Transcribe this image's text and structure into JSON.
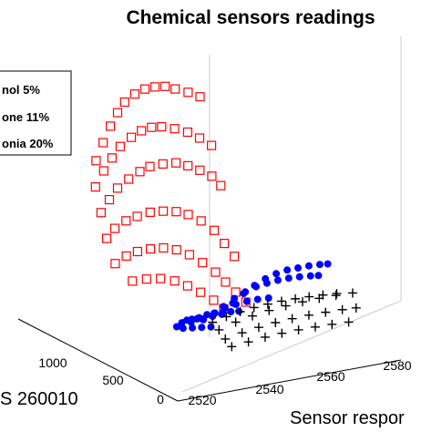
{
  "chart_data": {
    "type": "scatter",
    "title": "Chemical sensors readings",
    "xlabel": "Sensor respor",
    "ylabel": "S 260010",
    "x_ticks": [
      "2520",
      "2540",
      "2560",
      "2580"
    ],
    "y_ticks": [
      "0",
      "500",
      "1000"
    ],
    "xlim": [
      2515,
      2590
    ],
    "ylim": [
      0,
      1500
    ],
    "zlim": [
      0,
      2000
    ],
    "legend_position": "top-left",
    "legend": [
      "nol 5%",
      "one 11%",
      "onia 20%"
    ],
    "series": [
      {
        "name": "nol 5%",
        "marker": "square",
        "color": "#ff0000",
        "points": [
          [
            2531,
            1250,
            1050
          ],
          [
            2532,
            1210,
            1180
          ],
          [
            2533,
            1170,
            1300
          ],
          [
            2534,
            1130,
            1400
          ],
          [
            2535,
            1090,
            1480
          ],
          [
            2537,
            1050,
            1540
          ],
          [
            2539,
            1010,
            1580
          ],
          [
            2541,
            970,
            1600
          ],
          [
            2543,
            930,
            1610
          ],
          [
            2545,
            890,
            1600
          ],
          [
            2548,
            850,
            1580
          ],
          [
            2551,
            820,
            1550
          ],
          [
            2529,
            1200,
            900
          ],
          [
            2530,
            1150,
            1020
          ],
          [
            2531,
            1100,
            1120
          ],
          [
            2532,
            1050,
            1210
          ],
          [
            2534,
            1000,
            1280
          ],
          [
            2536,
            960,
            1330
          ],
          [
            2538,
            920,
            1360
          ],
          [
            2540,
            880,
            1370
          ],
          [
            2543,
            840,
            1360
          ],
          [
            2546,
            800,
            1340
          ],
          [
            2549,
            770,
            1300
          ],
          [
            2552,
            740,
            1250
          ],
          [
            2528,
            1120,
            760
          ],
          [
            2529,
            1070,
            860
          ],
          [
            2530,
            1020,
            950
          ],
          [
            2532,
            970,
            1020
          ],
          [
            2534,
            920,
            1080
          ],
          [
            2536,
            880,
            1120
          ],
          [
            2539,
            840,
            1140
          ],
          [
            2542,
            800,
            1150
          ],
          [
            2545,
            770,
            1130
          ],
          [
            2548,
            740,
            1100
          ],
          [
            2551,
            710,
            1060
          ],
          [
            2553,
            680,
            1000
          ],
          [
            2527,
            1040,
            620
          ],
          [
            2528,
            990,
            700
          ],
          [
            2530,
            940,
            760
          ],
          [
            2532,
            890,
            800
          ],
          [
            2535,
            850,
            830
          ],
          [
            2538,
            810,
            840
          ],
          [
            2541,
            770,
            840
          ],
          [
            2544,
            740,
            820
          ],
          [
            2547,
            700,
            780
          ],
          [
            2550,
            660,
            720
          ],
          [
            2552,
            620,
            640
          ],
          [
            2554,
            580,
            560
          ],
          [
            2527,
            960,
            480
          ],
          [
            2529,
            910,
            540
          ],
          [
            2531,
            860,
            580
          ],
          [
            2534,
            820,
            600
          ],
          [
            2537,
            780,
            610
          ],
          [
            2540,
            740,
            600
          ],
          [
            2543,
            700,
            570
          ],
          [
            2546,
            660,
            520
          ],
          [
            2549,
            620,
            460
          ],
          [
            2551,
            580,
            400
          ],
          [
            2553,
            540,
            340
          ],
          [
            2555,
            500,
            280
          ],
          [
            2530,
            880,
            380
          ],
          [
            2533,
            830,
            400
          ],
          [
            2536,
            780,
            410
          ],
          [
            2539,
            730,
            400
          ],
          [
            2542,
            690,
            370
          ],
          [
            2545,
            650,
            330
          ],
          [
            2548,
            610,
            280
          ],
          [
            2550,
            570,
            230
          ]
        ]
      },
      {
        "name": "one 11%",
        "marker": "circle",
        "color": "#0000ff",
        "points": [
          [
            2546,
            580,
            120
          ],
          [
            2549,
            560,
            200
          ],
          [
            2552,
            540,
            270
          ],
          [
            2555,
            520,
            330
          ],
          [
            2558,
            500,
            380
          ],
          [
            2561,
            480,
            420
          ],
          [
            2564,
            460,
            450
          ],
          [
            2567,
            440,
            470
          ],
          [
            2570,
            420,
            480
          ],
          [
            2573,
            400,
            490
          ],
          [
            2576,
            380,
            495
          ],
          [
            2578,
            360,
            498
          ],
          [
            2545,
            640,
            100
          ],
          [
            2548,
            620,
            170
          ],
          [
            2551,
            600,
            230
          ],
          [
            2554,
            580,
            280
          ],
          [
            2557,
            560,
            320
          ],
          [
            2560,
            540,
            350
          ],
          [
            2563,
            520,
            370
          ],
          [
            2566,
            500,
            385
          ],
          [
            2569,
            480,
            395
          ],
          [
            2572,
            460,
            400
          ],
          [
            2575,
            440,
            402
          ],
          [
            2577,
            420,
            404
          ],
          [
            2544,
            700,
            80
          ],
          [
            2547,
            680,
            130
          ],
          [
            2550,
            660,
            170
          ],
          [
            2553,
            640,
            200
          ],
          [
            2556,
            620,
            220
          ],
          [
            2559,
            600,
            235
          ],
          [
            2562,
            580,
            245
          ],
          [
            2565,
            560,
            250
          ],
          [
            2543,
            760,
            60
          ],
          [
            2545,
            740,
            100
          ],
          [
            2547,
            720,
            130
          ],
          [
            2549,
            700,
            150
          ],
          [
            2551,
            680,
            160
          ],
          [
            2553,
            660,
            165
          ],
          [
            2555,
            640,
            168
          ],
          [
            2557,
            620,
            170
          ],
          [
            2543,
            820,
            50
          ],
          [
            2544,
            800,
            80
          ],
          [
            2545,
            780,
            100
          ],
          [
            2546,
            760,
            110
          ],
          [
            2547,
            740,
            115
          ],
          [
            2548,
            720,
            118
          ]
        ]
      },
      {
        "name": "onia 20%",
        "marker": "plus",
        "color": "#000000",
        "points": [
          [
            2548,
            560,
            100
          ],
          [
            2553,
            540,
            140
          ],
          [
            2558,
            520,
            170
          ],
          [
            2563,
            500,
            195
          ],
          [
            2568,
            480,
            215
          ],
          [
            2573,
            460,
            230
          ],
          [
            2578,
            440,
            242
          ],
          [
            2583,
            420,
            250
          ],
          [
            2588,
            400,
            255
          ],
          [
            2548,
            500,
            60
          ],
          [
            2553,
            480,
            90
          ],
          [
            2558,
            460,
            115
          ],
          [
            2563,
            440,
            135
          ],
          [
            2568,
            420,
            150
          ],
          [
            2573,
            400,
            162
          ],
          [
            2578,
            380,
            170
          ],
          [
            2583,
            360,
            176
          ],
          [
            2587,
            340,
            180
          ],
          [
            2548,
            440,
            30
          ],
          [
            2553,
            420,
            50
          ],
          [
            2558,
            400,
            70
          ],
          [
            2563,
            380,
            85
          ],
          [
            2568,
            360,
            96
          ],
          [
            2573,
            340,
            104
          ],
          [
            2578,
            320,
            110
          ],
          [
            2583,
            300,
            114
          ],
          [
            2548,
            620,
            130
          ],
          [
            2552,
            600,
            160
          ],
          [
            2556,
            580,
            185
          ],
          [
            2560,
            560,
            205
          ],
          [
            2564,
            540,
            220
          ],
          [
            2568,
            520,
            232
          ],
          [
            2572,
            500,
            240
          ],
          [
            2576,
            480,
            246
          ],
          [
            2580,
            460,
            250
          ],
          [
            2584,
            440,
            252
          ]
        ]
      }
    ]
  }
}
